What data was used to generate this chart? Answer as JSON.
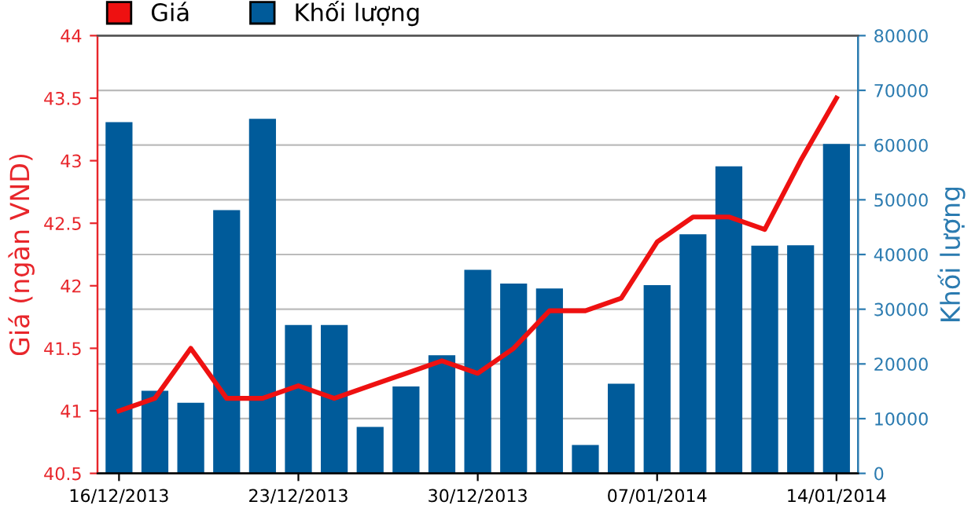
{
  "chart_data": {
    "type": "bar",
    "categories": [
      "16/12/2013",
      null,
      null,
      null,
      null,
      "23/12/2013",
      null,
      null,
      null,
      null,
      "30/12/2013",
      null,
      null,
      null,
      null,
      "07/01/2014",
      null,
      null,
      null,
      null,
      "14/01/2014"
    ],
    "ylabel": "Giá (ngàn VND)",
    "y2label": "Khối lượng",
    "ylim": [
      40.5,
      44
    ],
    "yticks": [
      40.5,
      41,
      41.5,
      42,
      42.5,
      43,
      43.5,
      44
    ],
    "y2lim": [
      0,
      80000
    ],
    "y2ticks": [
      0,
      10000,
      20000,
      30000,
      40000,
      50000,
      60000,
      70000,
      80000
    ],
    "grid": "y",
    "legend": "top left",
    "series": [
      {
        "name": "Khối lượng",
        "axis": "y2",
        "color": "#005b9a",
        "values": [
          64200,
          15100,
          12900,
          48100,
          64800,
          27100,
          27100,
          8500,
          15900,
          21600,
          37200,
          34700,
          33800,
          5200,
          16400,
          34400,
          43700,
          56100,
          41600,
          41700,
          60200
        ]
      },
      {
        "name": "Giá",
        "type": "line",
        "color": "#ee1111",
        "values": [
          41.0,
          41.1,
          41.5,
          41.1,
          41.1,
          41.2,
          41.1,
          41.2,
          41.3,
          41.4,
          41.3,
          41.5,
          41.8,
          41.8,
          41.9,
          42.35,
          42.55,
          42.55,
          42.45,
          43.0,
          43.5
        ]
      }
    ]
  }
}
